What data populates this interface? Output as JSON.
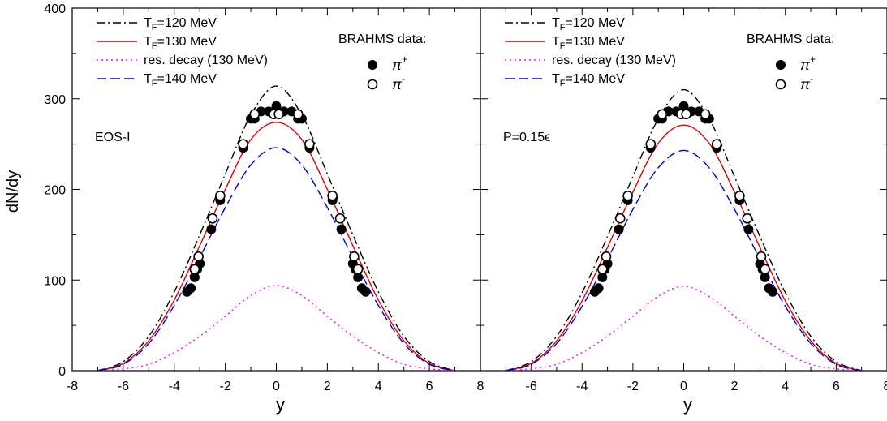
{
  "figure": {
    "ylabel": "dN/dy"
  },
  "chart_data": [
    {
      "type": "line",
      "panel_label": "EOS-I",
      "xlabel": "y",
      "ylabel": "dN/dy",
      "xlim": [
        -8,
        8
      ],
      "ylim": [
        0,
        400
      ],
      "xticks": [
        "-8",
        "-6",
        "-4",
        "-2",
        "0",
        "2",
        "4",
        "6",
        "8"
      ],
      "yticks": [
        "0",
        "100",
        "200",
        "300",
        "400"
      ],
      "legend_placement": "top-left",
      "series": [
        {
          "name": "T_F=120 MeV",
          "name_main": "T",
          "name_sub": "F",
          "name_tail": "=120 MeV",
          "color": "#000000",
          "style": "dashdot",
          "x": [
            -7,
            -6,
            -5,
            -4,
            -3,
            -2,
            -1,
            0,
            1,
            2,
            3,
            4,
            5,
            6,
            7
          ],
          "y": [
            0,
            10,
            38,
            87,
            150,
            217,
            282,
            314,
            282,
            217,
            150,
            87,
            38,
            10,
            0
          ]
        },
        {
          "name": "T_F=130 MeV",
          "name_main": "T",
          "name_sub": "F",
          "name_tail": "=130 MeV",
          "color": "#e00000",
          "style": "solid",
          "x": [
            -7,
            -6,
            -5,
            -4,
            -3,
            -2,
            -1,
            0,
            1,
            2,
            3,
            4,
            5,
            6,
            7
          ],
          "y": [
            0,
            8,
            33,
            78,
            138,
            200,
            255,
            274,
            255,
            200,
            138,
            78,
            33,
            8,
            0
          ]
        },
        {
          "name": "res. decay (130 MeV)",
          "color": "#ff00ff",
          "style": "dotted",
          "x": [
            -7,
            -6,
            -5,
            -4,
            -3,
            -2,
            -1,
            0,
            1,
            2,
            3,
            4,
            5,
            6,
            7
          ],
          "y": [
            0,
            2,
            7,
            20,
            38,
            60,
            83,
            94,
            83,
            60,
            38,
            20,
            7,
            2,
            0
          ]
        },
        {
          "name": "T_F=140 MeV",
          "name_main": "T",
          "name_sub": "F",
          "name_tail": "=140 MeV",
          "color": "#0000c8",
          "style": "dashed",
          "x": [
            -7,
            -6,
            -5,
            -4,
            -3,
            -2,
            -1,
            0,
            1,
            2,
            3,
            4,
            5,
            6,
            7
          ],
          "y": [
            0,
            7,
            30,
            72,
            125,
            180,
            227,
            246,
            227,
            180,
            125,
            72,
            30,
            7,
            0
          ]
        }
      ],
      "data_title": "BRAHMS data:",
      "data_series": [
        {
          "name": "π+",
          "name_main": "π",
          "name_sup": "+",
          "marker": "filled-circle",
          "x": [
            -3.5,
            -3.35,
            -3.2,
            -3.1,
            -3.0,
            -2.55,
            -2.2,
            -1.3,
            -1.0,
            -0.85,
            -0.6,
            -0.3,
            -0.1,
            0,
            0.1,
            0.3,
            0.6,
            0.85,
            1.0,
            1.3,
            2.2,
            2.55,
            3.0,
            3.1,
            3.2,
            3.35,
            3.5
          ],
          "y": [
            87,
            91,
            103,
            112,
            118,
            156,
            188,
            246,
            278,
            278,
            286,
            286,
            284,
            292,
            284,
            286,
            286,
            278,
            278,
            246,
            188,
            156,
            118,
            112,
            103,
            91,
            87
          ]
        },
        {
          "name": "π-",
          "name_main": "π",
          "name_sup": "-",
          "marker": "open-circle",
          "x": [
            -3.2,
            -3.05,
            -2.5,
            -2.2,
            -1.3,
            -0.85,
            -0.1,
            0.1,
            0.85,
            1.3,
            2.2,
            2.5,
            3.05,
            3.2
          ],
          "y": [
            112,
            126,
            168,
            193,
            250,
            283,
            283,
            283,
            283,
            250,
            193,
            168,
            126,
            112
          ]
        }
      ]
    },
    {
      "type": "line",
      "panel_label": "P=0.15ϵ",
      "xlabel": "y",
      "ylabel": "dN/dy",
      "xlim": [
        -8,
        8
      ],
      "ylim": [
        0,
        400
      ],
      "xticks": [
        "-8",
        "-6",
        "-4",
        "-2",
        "0",
        "2",
        "4",
        "6",
        "8"
      ],
      "yticks": [
        "0",
        "100",
        "200",
        "300",
        "400"
      ],
      "legend_placement": "top-left",
      "series": [
        {
          "name": "T_F=120 MeV",
          "name_main": "T",
          "name_sub": "F",
          "name_tail": "=120 MeV",
          "color": "#000000",
          "style": "dashdot",
          "x": [
            -7,
            -6,
            -5,
            -4,
            -3,
            -2,
            -1,
            0,
            1,
            2,
            3,
            4,
            5,
            6,
            7
          ],
          "y": [
            0,
            10,
            38,
            86,
            148,
            214,
            278,
            310,
            278,
            214,
            148,
            86,
            38,
            10,
            0
          ]
        },
        {
          "name": "T_F=130 MeV",
          "name_main": "T",
          "name_sub": "F",
          "name_tail": "=130 MeV",
          "color": "#e00000",
          "style": "solid",
          "x": [
            -7,
            -6,
            -5,
            -4,
            -3,
            -2,
            -1,
            0,
            1,
            2,
            3,
            4,
            5,
            6,
            7
          ],
          "y": [
            0,
            8,
            33,
            77,
            136,
            197,
            251,
            271,
            251,
            197,
            136,
            77,
            33,
            8,
            0
          ]
        },
        {
          "name": "res. decay (130 MeV)",
          "color": "#ff00ff",
          "style": "dotted",
          "x": [
            -7,
            -6,
            -5,
            -4,
            -3,
            -2,
            -1,
            0,
            1,
            2,
            3,
            4,
            5,
            6,
            7
          ],
          "y": [
            0,
            2,
            7,
            20,
            38,
            60,
            82,
            93,
            82,
            60,
            38,
            20,
            7,
            2,
            0
          ]
        },
        {
          "name": "T_F=140 MeV",
          "name_main": "T",
          "name_sub": "F",
          "name_tail": "=140 MeV",
          "color": "#0000c8",
          "style": "dashed",
          "x": [
            -7,
            -6,
            -5,
            -4,
            -3,
            -2,
            -1,
            0,
            1,
            2,
            3,
            4,
            5,
            6,
            7
          ],
          "y": [
            0,
            7,
            30,
            71,
            123,
            178,
            224,
            243,
            224,
            178,
            123,
            71,
            30,
            7,
            0
          ]
        }
      ],
      "data_title": "BRAHMS data:",
      "data_series": [
        {
          "name": "π+",
          "name_main": "π",
          "name_sup": "+",
          "marker": "filled-circle",
          "x": [
            -3.5,
            -3.35,
            -3.2,
            -3.1,
            -3.0,
            -2.55,
            -2.2,
            -1.3,
            -1.0,
            -0.85,
            -0.6,
            -0.3,
            -0.1,
            0,
            0.1,
            0.3,
            0.6,
            0.85,
            1.0,
            1.3,
            2.2,
            2.55,
            3.0,
            3.1,
            3.2,
            3.35,
            3.5
          ],
          "y": [
            87,
            91,
            103,
            112,
            118,
            156,
            188,
            246,
            278,
            278,
            286,
            286,
            284,
            292,
            284,
            286,
            286,
            278,
            278,
            246,
            188,
            156,
            118,
            112,
            103,
            91,
            87
          ]
        },
        {
          "name": "π-",
          "name_main": "π",
          "name_sup": "-",
          "marker": "open-circle",
          "x": [
            -3.2,
            -3.05,
            -2.5,
            -2.2,
            -1.3,
            -0.85,
            -0.1,
            0.1,
            0.85,
            1.3,
            2.2,
            2.5,
            3.05,
            3.2
          ],
          "y": [
            112,
            126,
            168,
            193,
            250,
            283,
            283,
            283,
            283,
            250,
            193,
            168,
            126,
            112
          ]
        }
      ]
    }
  ]
}
